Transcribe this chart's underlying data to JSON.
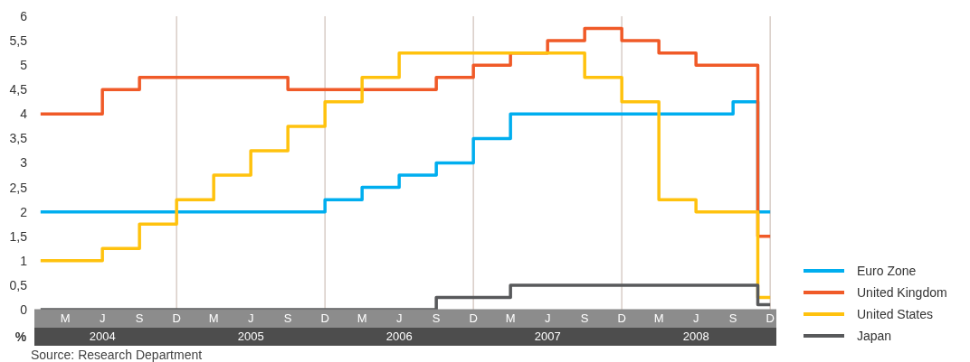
{
  "chart_data": {
    "type": "step",
    "ylabel": "%",
    "categories": [
      null,
      null,
      "M",
      null,
      null,
      "J",
      null,
      null,
      "S",
      null,
      null,
      "D",
      null,
      null,
      "M",
      null,
      null,
      "J",
      null,
      null,
      "S",
      null,
      null,
      "D",
      null,
      null,
      "M",
      null,
      null,
      "J",
      null,
      null,
      "S",
      null,
      null,
      "D",
      null,
      null,
      "M",
      null,
      null,
      "J",
      null,
      null,
      "S",
      null,
      null,
      "D",
      null,
      null,
      "M",
      null,
      null,
      "J",
      null,
      null,
      "S",
      null,
      null,
      "D"
    ],
    "x2lim": [
      2004.0417,
      2009.0417
    ],
    "x2ticks": [
      {
        "value": 2004.5,
        "label": "2004"
      },
      {
        "value": 2005.5,
        "label": "2005"
      },
      {
        "value": 2006.5,
        "label": "2006"
      },
      {
        "value": 2007.5,
        "label": "2007"
      },
      {
        "value": 2008.5,
        "label": "2008"
      }
    ],
    "ylim": [
      0,
      6
    ],
    "yticks": [
      0,
      {
        "value": 0.5,
        "label": "0,5"
      },
      1,
      {
        "value": 1.5,
        "label": "1,5"
      },
      2,
      {
        "value": 2.5,
        "label": "2,5"
      },
      3,
      {
        "value": 3.5,
        "label": "3,5"
      },
      4,
      {
        "value": 4.5,
        "label": "4,5"
      },
      5,
      {
        "value": 5.5,
        "label": "5,5"
      },
      6
    ],
    "ref_lines": [
      {
        "axis": "x2",
        "value": 2005,
        "color": "#d8cdc6"
      },
      {
        "axis": "x2",
        "value": 2006,
        "color": "#d8cdc6"
      },
      {
        "axis": "x2",
        "value": 2007,
        "color": "#d8cdc6"
      },
      {
        "axis": "x2",
        "value": 2008,
        "color": "#d8cdc6"
      },
      {
        "axis": "x2",
        "value": 2009,
        "color": "#d8cdc6"
      }
    ],
    "legend": "bottom right",
    "series": [
      {
        "name": "Euro Zone",
        "color": "#00aeef",
        "values": [
          2,
          2,
          2,
          2,
          2,
          2,
          2,
          2,
          2,
          2,
          2,
          2,
          2,
          2,
          2,
          2,
          2,
          2,
          2,
          2,
          2,
          2,
          2,
          2.25,
          2.25,
          2.25,
          2.5,
          2.5,
          2.5,
          2.75,
          2.75,
          2.75,
          3,
          3,
          3,
          3.5,
          3.5,
          3.5,
          4,
          4,
          4,
          4,
          4,
          4,
          4,
          4,
          4,
          4,
          4,
          4,
          4,
          4,
          4,
          4,
          4,
          4,
          4.25,
          4.25,
          2,
          2
        ]
      },
      {
        "name": "United Kingdom",
        "color": "#f05a28",
        "values": [
          4,
          4,
          4,
          4,
          4,
          4.5,
          4.5,
          4.5,
          4.75,
          4.75,
          4.75,
          4.75,
          4.75,
          4.75,
          4.75,
          4.75,
          4.75,
          4.75,
          4.75,
          4.75,
          4.5,
          4.5,
          4.5,
          4.5,
          4.5,
          4.5,
          4.5,
          4.5,
          4.5,
          4.5,
          4.5,
          4.5,
          4.75,
          4.75,
          4.75,
          5,
          5,
          5,
          5.25,
          5.25,
          5.25,
          5.5,
          5.5,
          5.5,
          5.75,
          5.75,
          5.75,
          5.5,
          5.5,
          5.5,
          5.25,
          5.25,
          5.25,
          5,
          5,
          5,
          5,
          5,
          1.5,
          1.5
        ]
      },
      {
        "name": "United States",
        "color": "#ffc20e",
        "values": [
          1,
          1,
          1,
          1,
          1,
          1.25,
          1.25,
          1.25,
          1.75,
          1.75,
          1.75,
          2.25,
          2.25,
          2.25,
          2.75,
          2.75,
          2.75,
          3.25,
          3.25,
          3.25,
          3.75,
          3.75,
          3.75,
          4.25,
          4.25,
          4.25,
          4.75,
          4.75,
          4.75,
          5.25,
          5.25,
          5.25,
          5.25,
          5.25,
          5.25,
          5.25,
          5.25,
          5.25,
          5.25,
          5.25,
          5.25,
          5.25,
          5.25,
          5.25,
          4.75,
          4.75,
          4.75,
          4.25,
          4.25,
          4.25,
          2.25,
          2.25,
          2.25,
          2,
          2,
          2,
          2,
          2,
          0.25,
          0.25
        ]
      },
      {
        "name": "Japan",
        "color": "#58595b",
        "values": [
          0,
          0,
          0,
          0,
          0,
          0,
          0,
          0,
          0,
          0,
          0,
          0,
          0,
          0,
          0,
          0,
          0,
          0,
          0,
          0,
          0,
          0,
          0,
          0,
          0,
          0,
          0,
          0,
          0,
          0,
          0,
          0,
          0.25,
          0.25,
          0.25,
          0.25,
          0.25,
          0.25,
          0.5,
          0.5,
          0.5,
          0.5,
          0.5,
          0.5,
          0.5,
          0.5,
          0.5,
          0.5,
          0.5,
          0.5,
          0.5,
          0.5,
          0.5,
          0.5,
          0.5,
          0.5,
          0.5,
          0.5,
          0.1,
          0.1
        ]
      }
    ],
    "annotations": [
      "Source: Research Department"
    ]
  }
}
